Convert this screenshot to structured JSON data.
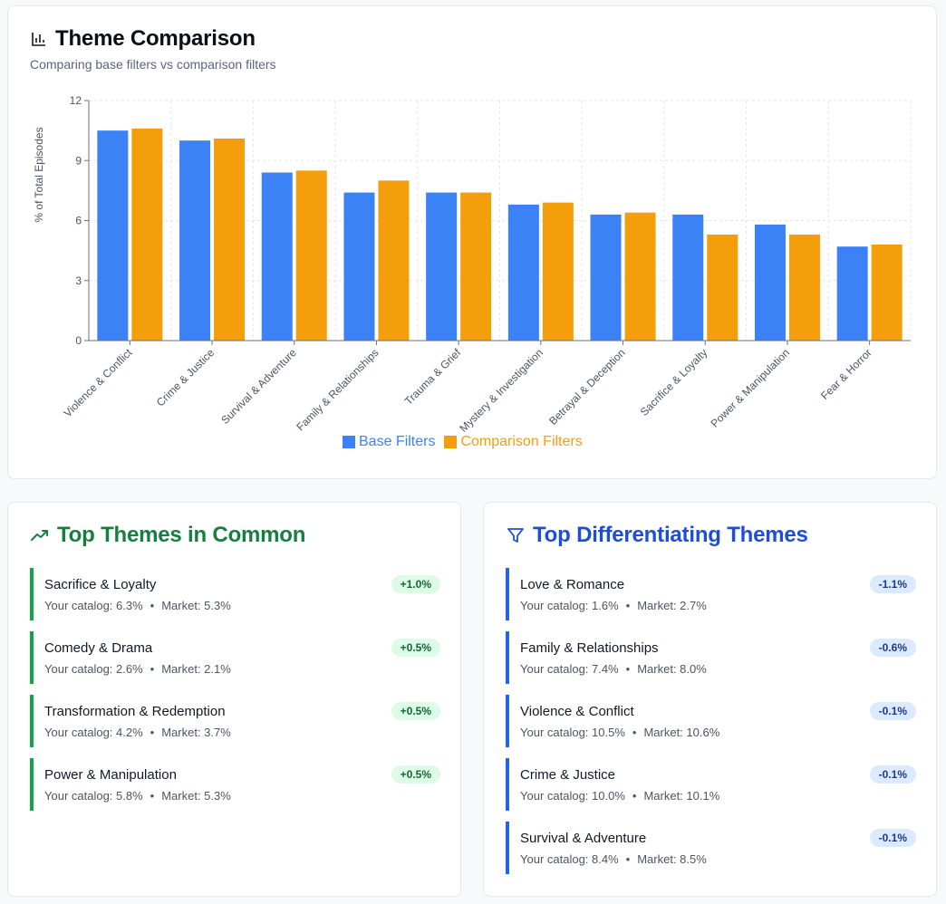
{
  "chart_card": {
    "title": "Theme Comparison",
    "subtitle": "Comparing base filters vs comparison filters"
  },
  "colors": {
    "base": "#3b82f6",
    "comparison": "#f59e0b",
    "common_accent": "#16a34a",
    "common_title": "#15803d",
    "diff_accent": "#2563eb",
    "diff_title": "#1d4ed8"
  },
  "chart_data": {
    "type": "bar",
    "title": "Theme Comparison",
    "ylabel": "% of Total Episodes",
    "xlabel": "",
    "ylim": [
      0,
      12
    ],
    "yticks": [
      0,
      3,
      6,
      9,
      12
    ],
    "grid": true,
    "legend_position": "bottom-center",
    "categories": [
      "Violence & Conflict",
      "Crime & Justice",
      "Survival & Adventure",
      "Family & Relationships",
      "Trauma & Grief",
      "Mystery & Investigation",
      "Betrayal & Deception",
      "Sacrifice & Loyalty",
      "Power & Manipulation",
      "Fear & Horror"
    ],
    "series": [
      {
        "name": "Base Filters",
        "values": [
          10.5,
          10.0,
          8.4,
          7.4,
          7.4,
          6.8,
          6.3,
          6.3,
          5.8,
          4.7
        ]
      },
      {
        "name": "Comparison Filters",
        "values": [
          10.6,
          10.1,
          8.5,
          8.0,
          7.4,
          6.9,
          6.4,
          5.3,
          5.3,
          4.8
        ]
      }
    ]
  },
  "common": {
    "title": "Top Themes in Common",
    "items": [
      {
        "name": "Sacrifice & Loyalty",
        "catalog": "Your catalog: 6.3%",
        "market": "Market: 5.3%",
        "delta": "+1.0%"
      },
      {
        "name": "Comedy & Drama",
        "catalog": "Your catalog: 2.6%",
        "market": "Market: 2.1%",
        "delta": "+0.5%"
      },
      {
        "name": "Transformation & Redemption",
        "catalog": "Your catalog: 4.2%",
        "market": "Market: 3.7%",
        "delta": "+0.5%"
      },
      {
        "name": "Power & Manipulation",
        "catalog": "Your catalog: 5.8%",
        "market": "Market: 5.3%",
        "delta": "+0.5%"
      }
    ]
  },
  "differentiating": {
    "title": "Top Differentiating Themes",
    "items": [
      {
        "name": "Love & Romance",
        "catalog": "Your catalog: 1.6%",
        "market": "Market: 2.7%",
        "delta": "-1.1%"
      },
      {
        "name": "Family & Relationships",
        "catalog": "Your catalog: 7.4%",
        "market": "Market: 8.0%",
        "delta": "-0.6%"
      },
      {
        "name": "Violence & Conflict",
        "catalog": "Your catalog: 10.5%",
        "market": "Market: 10.6%",
        "delta": "-0.1%"
      },
      {
        "name": "Crime & Justice",
        "catalog": "Your catalog: 10.0%",
        "market": "Market: 10.1%",
        "delta": "-0.1%"
      },
      {
        "name": "Survival & Adventure",
        "catalog": "Your catalog: 8.4%",
        "market": "Market: 8.5%",
        "delta": "-0.1%"
      }
    ]
  }
}
